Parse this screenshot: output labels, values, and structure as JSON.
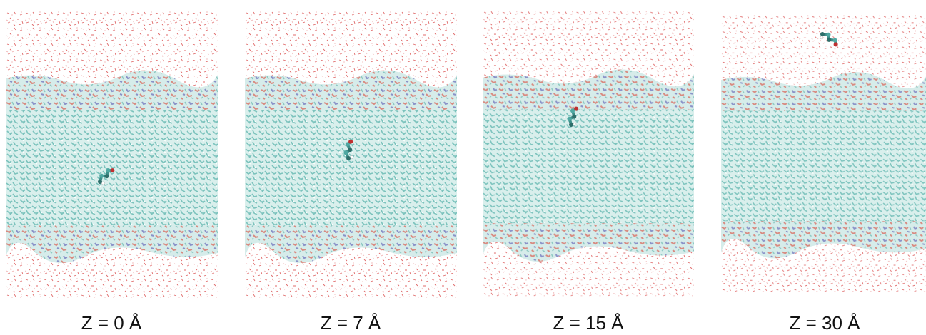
{
  "panels": [
    {
      "label": "Z = 0 Å"
    },
    {
      "label": "Z = 7 Å"
    },
    {
      "label": "Z = 15 Å"
    },
    {
      "label": "Z = 30 Å"
    }
  ]
}
